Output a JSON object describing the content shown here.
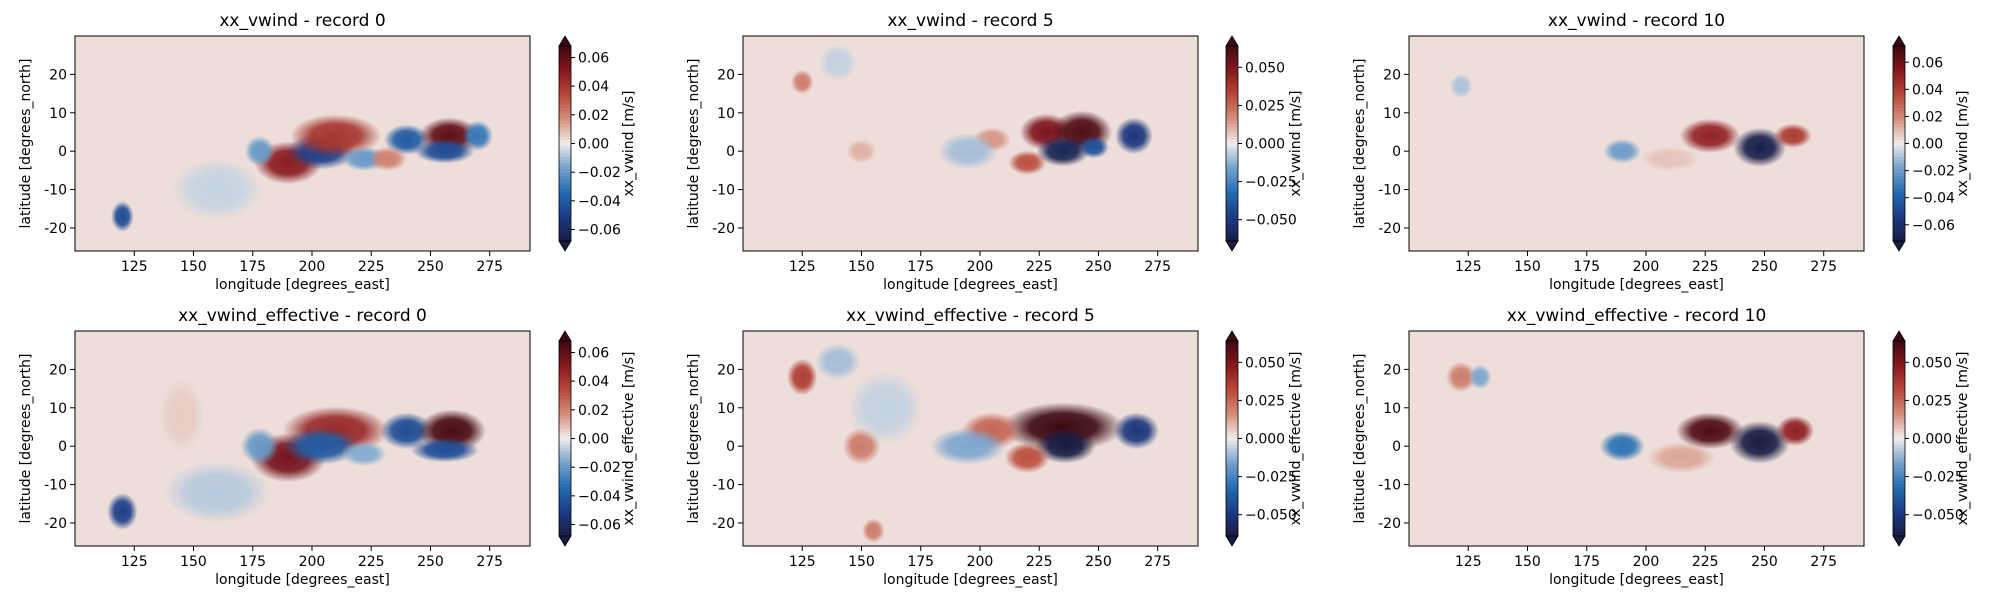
{
  "chart_data": [
    {
      "type": "heatmap",
      "title": "xx_vwind - record 0",
      "xlabel": "longitude [degrees_east]",
      "ylabel": "latitude [degrees_north]",
      "xlim": [
        100,
        292
      ],
      "ylim": [
        -26,
        30
      ],
      "xticks": [
        125,
        150,
        175,
        200,
        225,
        250,
        275
      ],
      "yticks": [
        -20,
        -10,
        0,
        10,
        20
      ],
      "colorbar": {
        "label": "xx_vwind [m/s]",
        "range": [
          -0.068,
          0.068
        ],
        "ticks": [
          -0.06,
          -0.04,
          -0.02,
          0.0,
          0.02,
          0.04,
          0.06
        ],
        "ticklabels": [
          "−0.06",
          "−0.04",
          "−0.02",
          "0.00",
          "0.02",
          "0.04",
          "0.06"
        ]
      },
      "blobs": [
        {
          "lon": 190,
          "lat": -3,
          "rx": 9,
          "ry": 3.5,
          "v": 0.05
        },
        {
          "lon": 204,
          "lat": 0,
          "rx": 9,
          "ry": 3,
          "v": -0.05
        },
        {
          "lon": 210,
          "lat": 4,
          "rx": 12,
          "ry": 3.5,
          "v": 0.04
        },
        {
          "lon": 222,
          "lat": -2,
          "rx": 6,
          "ry": 2,
          "v": -0.02
        },
        {
          "lon": 240,
          "lat": 3,
          "rx": 6,
          "ry": 2.5,
          "v": -0.04
        },
        {
          "lon": 258,
          "lat": 4,
          "rx": 8,
          "ry": 3,
          "v": 0.06
        },
        {
          "lon": 256,
          "lat": 0,
          "rx": 8,
          "ry": 2,
          "v": -0.045
        },
        {
          "lon": 270,
          "lat": 4,
          "rx": 4,
          "ry": 2.5,
          "v": -0.03
        },
        {
          "lon": 178,
          "lat": 0,
          "rx": 4,
          "ry": 2.5,
          "v": -0.02
        },
        {
          "lon": 232,
          "lat": -2,
          "rx": 5,
          "ry": 2,
          "v": 0.02
        },
        {
          "lon": 120,
          "lat": -17,
          "rx": 3,
          "ry": 2.5,
          "v": -0.045
        },
        {
          "lon": 160,
          "lat": -10,
          "rx": 12,
          "ry": 5,
          "v": -0.006
        }
      ]
    },
    {
      "type": "heatmap",
      "title": "xx_vwind - record 5",
      "xlabel": "longitude [degrees_east]",
      "ylabel": "latitude [degrees_north]",
      "xlim": [
        100,
        292
      ],
      "ylim": [
        -26,
        30
      ],
      "xticks": [
        125,
        150,
        175,
        200,
        225,
        250,
        275
      ],
      "yticks": [
        -20,
        -10,
        0,
        10,
        20
      ],
      "colorbar": {
        "label": "xx_vwind [m/s]",
        "range": [
          -0.064,
          0.064
        ],
        "ticks": [
          -0.05,
          -0.025,
          0.0,
          0.025,
          0.05
        ],
        "ticklabels": [
          "−0.050",
          "−0.025",
          "0.000",
          "0.025",
          "0.050"
        ]
      },
      "blobs": [
        {
          "lon": 228,
          "lat": 5,
          "rx": 7,
          "ry": 3,
          "v": 0.05
        },
        {
          "lon": 243,
          "lat": 5,
          "rx": 8,
          "ry": 3.5,
          "v": 0.06
        },
        {
          "lon": 235,
          "lat": 0,
          "rx": 7,
          "ry": 2.5,
          "v": -0.06
        },
        {
          "lon": 248,
          "lat": 1,
          "rx": 4,
          "ry": 1.8,
          "v": -0.04
        },
        {
          "lon": 265,
          "lat": 4,
          "rx": 5,
          "ry": 3,
          "v": -0.05
        },
        {
          "lon": 220,
          "lat": -3,
          "rx": 5,
          "ry": 2,
          "v": 0.03
        },
        {
          "lon": 205,
          "lat": 3,
          "rx": 5,
          "ry": 2,
          "v": 0.015
        },
        {
          "lon": 195,
          "lat": 0,
          "rx": 8,
          "ry": 3,
          "v": -0.01
        },
        {
          "lon": 150,
          "lat": 0,
          "rx": 4,
          "ry": 2,
          "v": 0.01
        },
        {
          "lon": 125,
          "lat": 18,
          "rx": 3,
          "ry": 2,
          "v": 0.02
        },
        {
          "lon": 140,
          "lat": 23,
          "rx": 5,
          "ry": 3,
          "v": -0.006
        }
      ]
    },
    {
      "type": "heatmap",
      "title": "xx_vwind - record 10",
      "xlabel": "longitude [degrees_east]",
      "ylabel": "latitude [degrees_north]",
      "xlim": [
        100,
        292
      ],
      "ylim": [
        -26,
        30
      ],
      "xticks": [
        125,
        150,
        175,
        200,
        225,
        250,
        275
      ],
      "yticks": [
        -20,
        -10,
        0,
        10,
        20
      ],
      "colorbar": {
        "label": "xx_vwind [m/s]",
        "range": [
          -0.072,
          0.072
        ],
        "ticks": [
          -0.06,
          -0.04,
          -0.02,
          0.0,
          0.02,
          0.04,
          0.06
        ],
        "ticklabels": [
          "−0.06",
          "−0.04",
          "−0.02",
          "0.00",
          "0.02",
          "0.04",
          "0.06"
        ]
      },
      "blobs": [
        {
          "lon": 227,
          "lat": 4,
          "rx": 8,
          "ry": 2.8,
          "v": 0.05
        },
        {
          "lon": 248,
          "lat": 1,
          "rx": 7,
          "ry": 3.2,
          "v": -0.07
        },
        {
          "lon": 262,
          "lat": 4,
          "rx": 5,
          "ry": 2,
          "v": 0.04
        },
        {
          "lon": 190,
          "lat": 0,
          "rx": 5,
          "ry": 2,
          "v": -0.02
        },
        {
          "lon": 210,
          "lat": -2,
          "rx": 8,
          "ry": 2,
          "v": 0.008
        },
        {
          "lon": 122,
          "lat": 17,
          "rx": 3,
          "ry": 2,
          "v": -0.01
        }
      ]
    },
    {
      "type": "heatmap",
      "title": "xx_vwind_effective - record 0",
      "xlabel": "longitude [degrees_east]",
      "ylabel": "latitude [degrees_north]",
      "xlim": [
        100,
        292
      ],
      "ylim": [
        -26,
        30
      ],
      "xticks": [
        125,
        150,
        175,
        200,
        225,
        250,
        275
      ],
      "yticks": [
        -20,
        -10,
        0,
        10,
        20
      ],
      "colorbar": {
        "label": "xx_vwind_effective [m/s]",
        "range": [
          -0.068,
          0.068
        ],
        "ticks": [
          -0.06,
          -0.04,
          -0.02,
          0.0,
          0.02,
          0.04,
          0.06
        ],
        "ticklabels": [
          "−0.06",
          "−0.04",
          "−0.02",
          "0.00",
          "0.02",
          "0.04",
          "0.06"
        ]
      },
      "blobs": [
        {
          "lon": 190,
          "lat": -3,
          "rx": 10,
          "ry": 4,
          "v": 0.055
        },
        {
          "lon": 210,
          "lat": 4,
          "rx": 14,
          "ry": 4,
          "v": 0.045
        },
        {
          "lon": 204,
          "lat": 0,
          "rx": 10,
          "ry": 3,
          "v": -0.04
        },
        {
          "lon": 240,
          "lat": 4,
          "rx": 7,
          "ry": 3,
          "v": -0.045
        },
        {
          "lon": 259,
          "lat": 4,
          "rx": 9,
          "ry": 3.5,
          "v": 0.065
        },
        {
          "lon": 256,
          "lat": -1,
          "rx": 9,
          "ry": 2,
          "v": -0.045
        },
        {
          "lon": 222,
          "lat": -2,
          "rx": 6,
          "ry": 2,
          "v": -0.015
        },
        {
          "lon": 178,
          "lat": 0,
          "rx": 5,
          "ry": 3,
          "v": -0.02
        },
        {
          "lon": 120,
          "lat": -17,
          "rx": 4,
          "ry": 3,
          "v": -0.05
        },
        {
          "lon": 160,
          "lat": -12,
          "rx": 14,
          "ry": 5,
          "v": -0.008
        },
        {
          "lon": 145,
          "lat": 8,
          "rx": 6,
          "ry": 6,
          "v": 0.006
        }
      ]
    },
    {
      "type": "heatmap",
      "title": "xx_vwind_effective - record 5",
      "xlabel": "longitude [degrees_east]",
      "ylabel": "latitude [degrees_north]",
      "xlim": [
        100,
        292
      ],
      "ylim": [
        -26,
        30
      ],
      "xticks": [
        125,
        150,
        175,
        200,
        225,
        250,
        275
      ],
      "yticks": [
        -20,
        -10,
        0,
        10,
        20
      ],
      "colorbar": {
        "label": "xx_vwind_effective [m/s]",
        "range": [
          -0.064,
          0.064
        ],
        "ticks": [
          -0.05,
          -0.025,
          0.0,
          0.025,
          0.05
        ],
        "ticklabels": [
          "−0.050",
          "−0.025",
          "0.000",
          "0.025",
          "0.050"
        ]
      },
      "blobs": [
        {
          "lon": 235,
          "lat": 5,
          "rx": 16,
          "ry": 4,
          "v": 0.065
        },
        {
          "lon": 236,
          "lat": 0,
          "rx": 8,
          "ry": 2.8,
          "v": -0.065
        },
        {
          "lon": 266,
          "lat": 4,
          "rx": 6,
          "ry": 3,
          "v": -0.05
        },
        {
          "lon": 220,
          "lat": -3,
          "rx": 6,
          "ry": 2.5,
          "v": 0.03
        },
        {
          "lon": 205,
          "lat": 4,
          "rx": 8,
          "ry": 3,
          "v": 0.025
        },
        {
          "lon": 195,
          "lat": 0,
          "rx": 10,
          "ry": 3,
          "v": -0.015
        },
        {
          "lon": 150,
          "lat": 0,
          "rx": 5,
          "ry": 3,
          "v": 0.02
        },
        {
          "lon": 125,
          "lat": 18,
          "rx": 4,
          "ry": 3,
          "v": 0.035
        },
        {
          "lon": 140,
          "lat": 22,
          "rx": 6,
          "ry": 3,
          "v": -0.01
        },
        {
          "lon": 160,
          "lat": 10,
          "rx": 10,
          "ry": 6,
          "v": -0.006
        },
        {
          "lon": 155,
          "lat": -22,
          "rx": 3,
          "ry": 2,
          "v": 0.02
        }
      ]
    },
    {
      "type": "heatmap",
      "title": "xx_vwind_effective - record 10",
      "xlabel": "longitude [degrees_east]",
      "ylabel": "latitude [degrees_north]",
      "xlim": [
        100,
        292
      ],
      "ylim": [
        -26,
        30
      ],
      "xticks": [
        125,
        150,
        175,
        200,
        225,
        250,
        275
      ],
      "yticks": [
        -20,
        -10,
        0,
        10,
        20
      ],
      "colorbar": {
        "label": "xx_vwind_effective [m/s]",
        "range": [
          -0.064,
          0.064
        ],
        "ticks": [
          -0.05,
          -0.025,
          0.0,
          0.025,
          0.05
        ],
        "ticklabels": [
          "−0.050",
          "−0.025",
          "0.000",
          "0.025",
          "0.050"
        ]
      },
      "blobs": [
        {
          "lon": 227,
          "lat": 4,
          "rx": 9,
          "ry": 3,
          "v": 0.06
        },
        {
          "lon": 248,
          "lat": 1,
          "rx": 8,
          "ry": 3.5,
          "v": -0.065
        },
        {
          "lon": 263,
          "lat": 4,
          "rx": 5,
          "ry": 2.5,
          "v": 0.045
        },
        {
          "lon": 190,
          "lat": 0,
          "rx": 6,
          "ry": 2.5,
          "v": -0.03
        },
        {
          "lon": 215,
          "lat": -3,
          "rx": 9,
          "ry": 2.5,
          "v": 0.012
        },
        {
          "lon": 122,
          "lat": 18,
          "rx": 4,
          "ry": 2.5,
          "v": 0.02
        },
        {
          "lon": 130,
          "lat": 18,
          "rx": 3,
          "ry": 2,
          "v": -0.015
        }
      ]
    }
  ]
}
